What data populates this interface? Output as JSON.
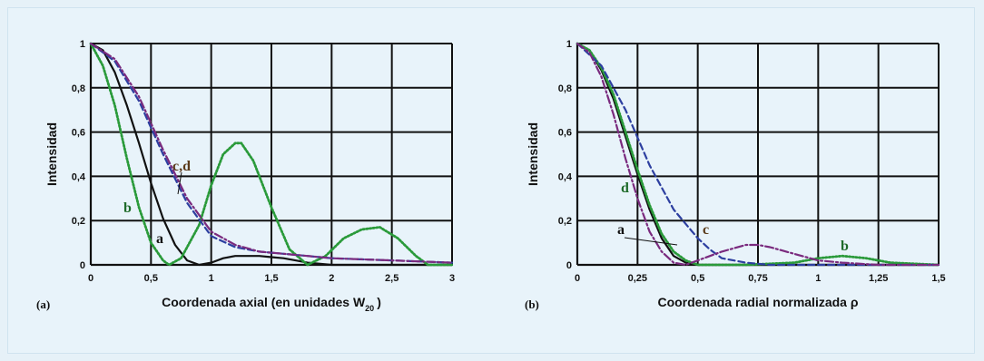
{
  "colors": {
    "background": "#e6f1f8",
    "grid": "#111111",
    "curve_a": "#111111",
    "curve_b": "#2a9a3a",
    "curve_c": "#2d3fa0",
    "curve_d": "#7a2a7e",
    "label_a": "#111111",
    "label_b": "#1f6b2a",
    "label_cd": "#5a3a1a",
    "label_d": "#1f6b2a"
  },
  "chart_data": [
    {
      "type": "line",
      "panel_label": "(a)",
      "xlabel": "Coordenada axial (en unidades W",
      "xlabel_sub": "20",
      "xlabel_close": ")",
      "ylabel": "Intensidad",
      "xlim": [
        0,
        3
      ],
      "ylim": [
        0,
        1
      ],
      "x_ticks": [
        0,
        0.5,
        1,
        1.5,
        2,
        2.5,
        3
      ],
      "x_tick_labels": [
        "0",
        "0,5",
        "1",
        "1,5",
        "2",
        "2,5",
        "3"
      ],
      "y_ticks": [
        0,
        0.2,
        0.4,
        0.6,
        0.8,
        1
      ],
      "y_tick_labels": [
        "0",
        "0,2",
        "0,4",
        "0,6",
        "0,8",
        "1"
      ],
      "grid": true,
      "series": [
        {
          "name": "a",
          "style": "solid",
          "x": [
            0,
            0.1,
            0.2,
            0.3,
            0.4,
            0.5,
            0.6,
            0.7,
            0.8,
            0.9,
            1.0,
            1.1,
            1.2,
            1.3,
            1.4,
            1.5,
            1.6,
            1.7,
            1.8,
            2.0,
            3.0
          ],
          "y": [
            1.0,
            0.97,
            0.87,
            0.72,
            0.55,
            0.37,
            0.21,
            0.09,
            0.02,
            0.0,
            0.01,
            0.03,
            0.04,
            0.04,
            0.04,
            0.035,
            0.03,
            0.02,
            0.01,
            0.0,
            0.0
          ]
        },
        {
          "name": "b",
          "style": "dotted",
          "x": [
            0,
            0.1,
            0.2,
            0.3,
            0.4,
            0.5,
            0.6,
            0.65,
            0.75,
            0.9,
            1.0,
            1.1,
            1.2,
            1.25,
            1.35,
            1.5,
            1.65,
            1.8,
            1.95,
            2.1,
            2.25,
            2.4,
            2.55,
            2.7,
            2.8,
            3.0
          ],
          "y": [
            1.0,
            0.9,
            0.72,
            0.48,
            0.26,
            0.1,
            0.02,
            0.0,
            0.03,
            0.18,
            0.36,
            0.5,
            0.55,
            0.55,
            0.47,
            0.26,
            0.07,
            0.0,
            0.04,
            0.12,
            0.16,
            0.17,
            0.12,
            0.04,
            0.0,
            0.0
          ]
        },
        {
          "name": "c",
          "style": "dashed",
          "x": [
            0,
            0.2,
            0.4,
            0.6,
            0.8,
            1.0,
            1.2,
            1.4,
            1.6,
            1.8,
            2.0,
            2.5,
            3.0
          ],
          "y": [
            1.0,
            0.92,
            0.74,
            0.5,
            0.28,
            0.13,
            0.08,
            0.06,
            0.05,
            0.04,
            0.03,
            0.02,
            0.01
          ]
        },
        {
          "name": "d",
          "style": "dashdot",
          "x": [
            0,
            0.2,
            0.4,
            0.6,
            0.8,
            1.0,
            1.2,
            1.4,
            1.6,
            1.8,
            2.0,
            2.5,
            3.0
          ],
          "y": [
            1.0,
            0.93,
            0.76,
            0.52,
            0.3,
            0.15,
            0.09,
            0.06,
            0.05,
            0.04,
            0.03,
            0.02,
            0.01
          ]
        }
      ],
      "annotations": [
        {
          "text": "a",
          "series": "a"
        },
        {
          "text": "b",
          "series": "b"
        },
        {
          "text": "c,d",
          "series": "c"
        }
      ]
    },
    {
      "type": "line",
      "panel_label": "(b)",
      "xlabel": "Coordenada radial normalizada ρ",
      "ylabel": "Intensidad",
      "xlim": [
        0,
        1.5
      ],
      "ylim": [
        0,
        1
      ],
      "x_ticks": [
        0,
        0.25,
        0.5,
        0.75,
        1,
        1.25,
        1.5
      ],
      "x_tick_labels": [
        "0",
        "0,25",
        "0,5",
        "0,75",
        "1",
        "1,25",
        "1,5"
      ],
      "y_ticks": [
        0,
        0.2,
        0.4,
        0.6,
        0.8,
        1
      ],
      "y_tick_labels": [
        "0",
        "0,2",
        "0,4",
        "0,6",
        "0,8",
        "1"
      ],
      "grid": true,
      "series": [
        {
          "name": "a",
          "style": "solid",
          "x": [
            0,
            0.05,
            0.1,
            0.15,
            0.2,
            0.25,
            0.3,
            0.35,
            0.4,
            0.45,
            0.5,
            0.6,
            1.5
          ],
          "y": [
            1.0,
            0.97,
            0.88,
            0.75,
            0.58,
            0.41,
            0.25,
            0.12,
            0.04,
            0.01,
            0.0,
            0.0,
            0.0
          ]
        },
        {
          "name": "b",
          "style": "dotted",
          "x": [
            0,
            0.05,
            0.1,
            0.15,
            0.2,
            0.25,
            0.3,
            0.35,
            0.4,
            0.45,
            0.5,
            0.7,
            0.9,
            1.0,
            1.1,
            1.2,
            1.3,
            1.5
          ],
          "y": [
            1.0,
            0.97,
            0.89,
            0.77,
            0.6,
            0.43,
            0.27,
            0.14,
            0.06,
            0.02,
            0.0,
            0.0,
            0.01,
            0.03,
            0.04,
            0.03,
            0.01,
            0.0
          ]
        },
        {
          "name": "c",
          "style": "dashed",
          "x": [
            0,
            0.1,
            0.2,
            0.3,
            0.4,
            0.5,
            0.55,
            0.6,
            0.7,
            0.8,
            1.0,
            1.5
          ],
          "y": [
            1.0,
            0.9,
            0.7,
            0.45,
            0.25,
            0.12,
            0.07,
            0.03,
            0.01,
            0.0,
            0.0,
            0.0
          ]
        },
        {
          "name": "d",
          "style": "dashdot",
          "x": [
            0,
            0.05,
            0.1,
            0.15,
            0.2,
            0.25,
            0.3,
            0.35,
            0.4,
            0.45,
            0.5,
            0.6,
            0.7,
            0.75,
            0.8,
            0.9,
            1.0,
            1.1,
            1.25,
            1.5
          ],
          "y": [
            1.0,
            0.96,
            0.85,
            0.68,
            0.48,
            0.3,
            0.15,
            0.06,
            0.01,
            0.0,
            0.02,
            0.06,
            0.09,
            0.09,
            0.08,
            0.05,
            0.02,
            0.01,
            0.0,
            0.0
          ]
        }
      ],
      "annotations": [
        {
          "text": "a",
          "series": "a"
        },
        {
          "text": "b",
          "series": "b"
        },
        {
          "text": "c",
          "series": "c"
        },
        {
          "text": "d",
          "series": "d"
        }
      ]
    }
  ]
}
